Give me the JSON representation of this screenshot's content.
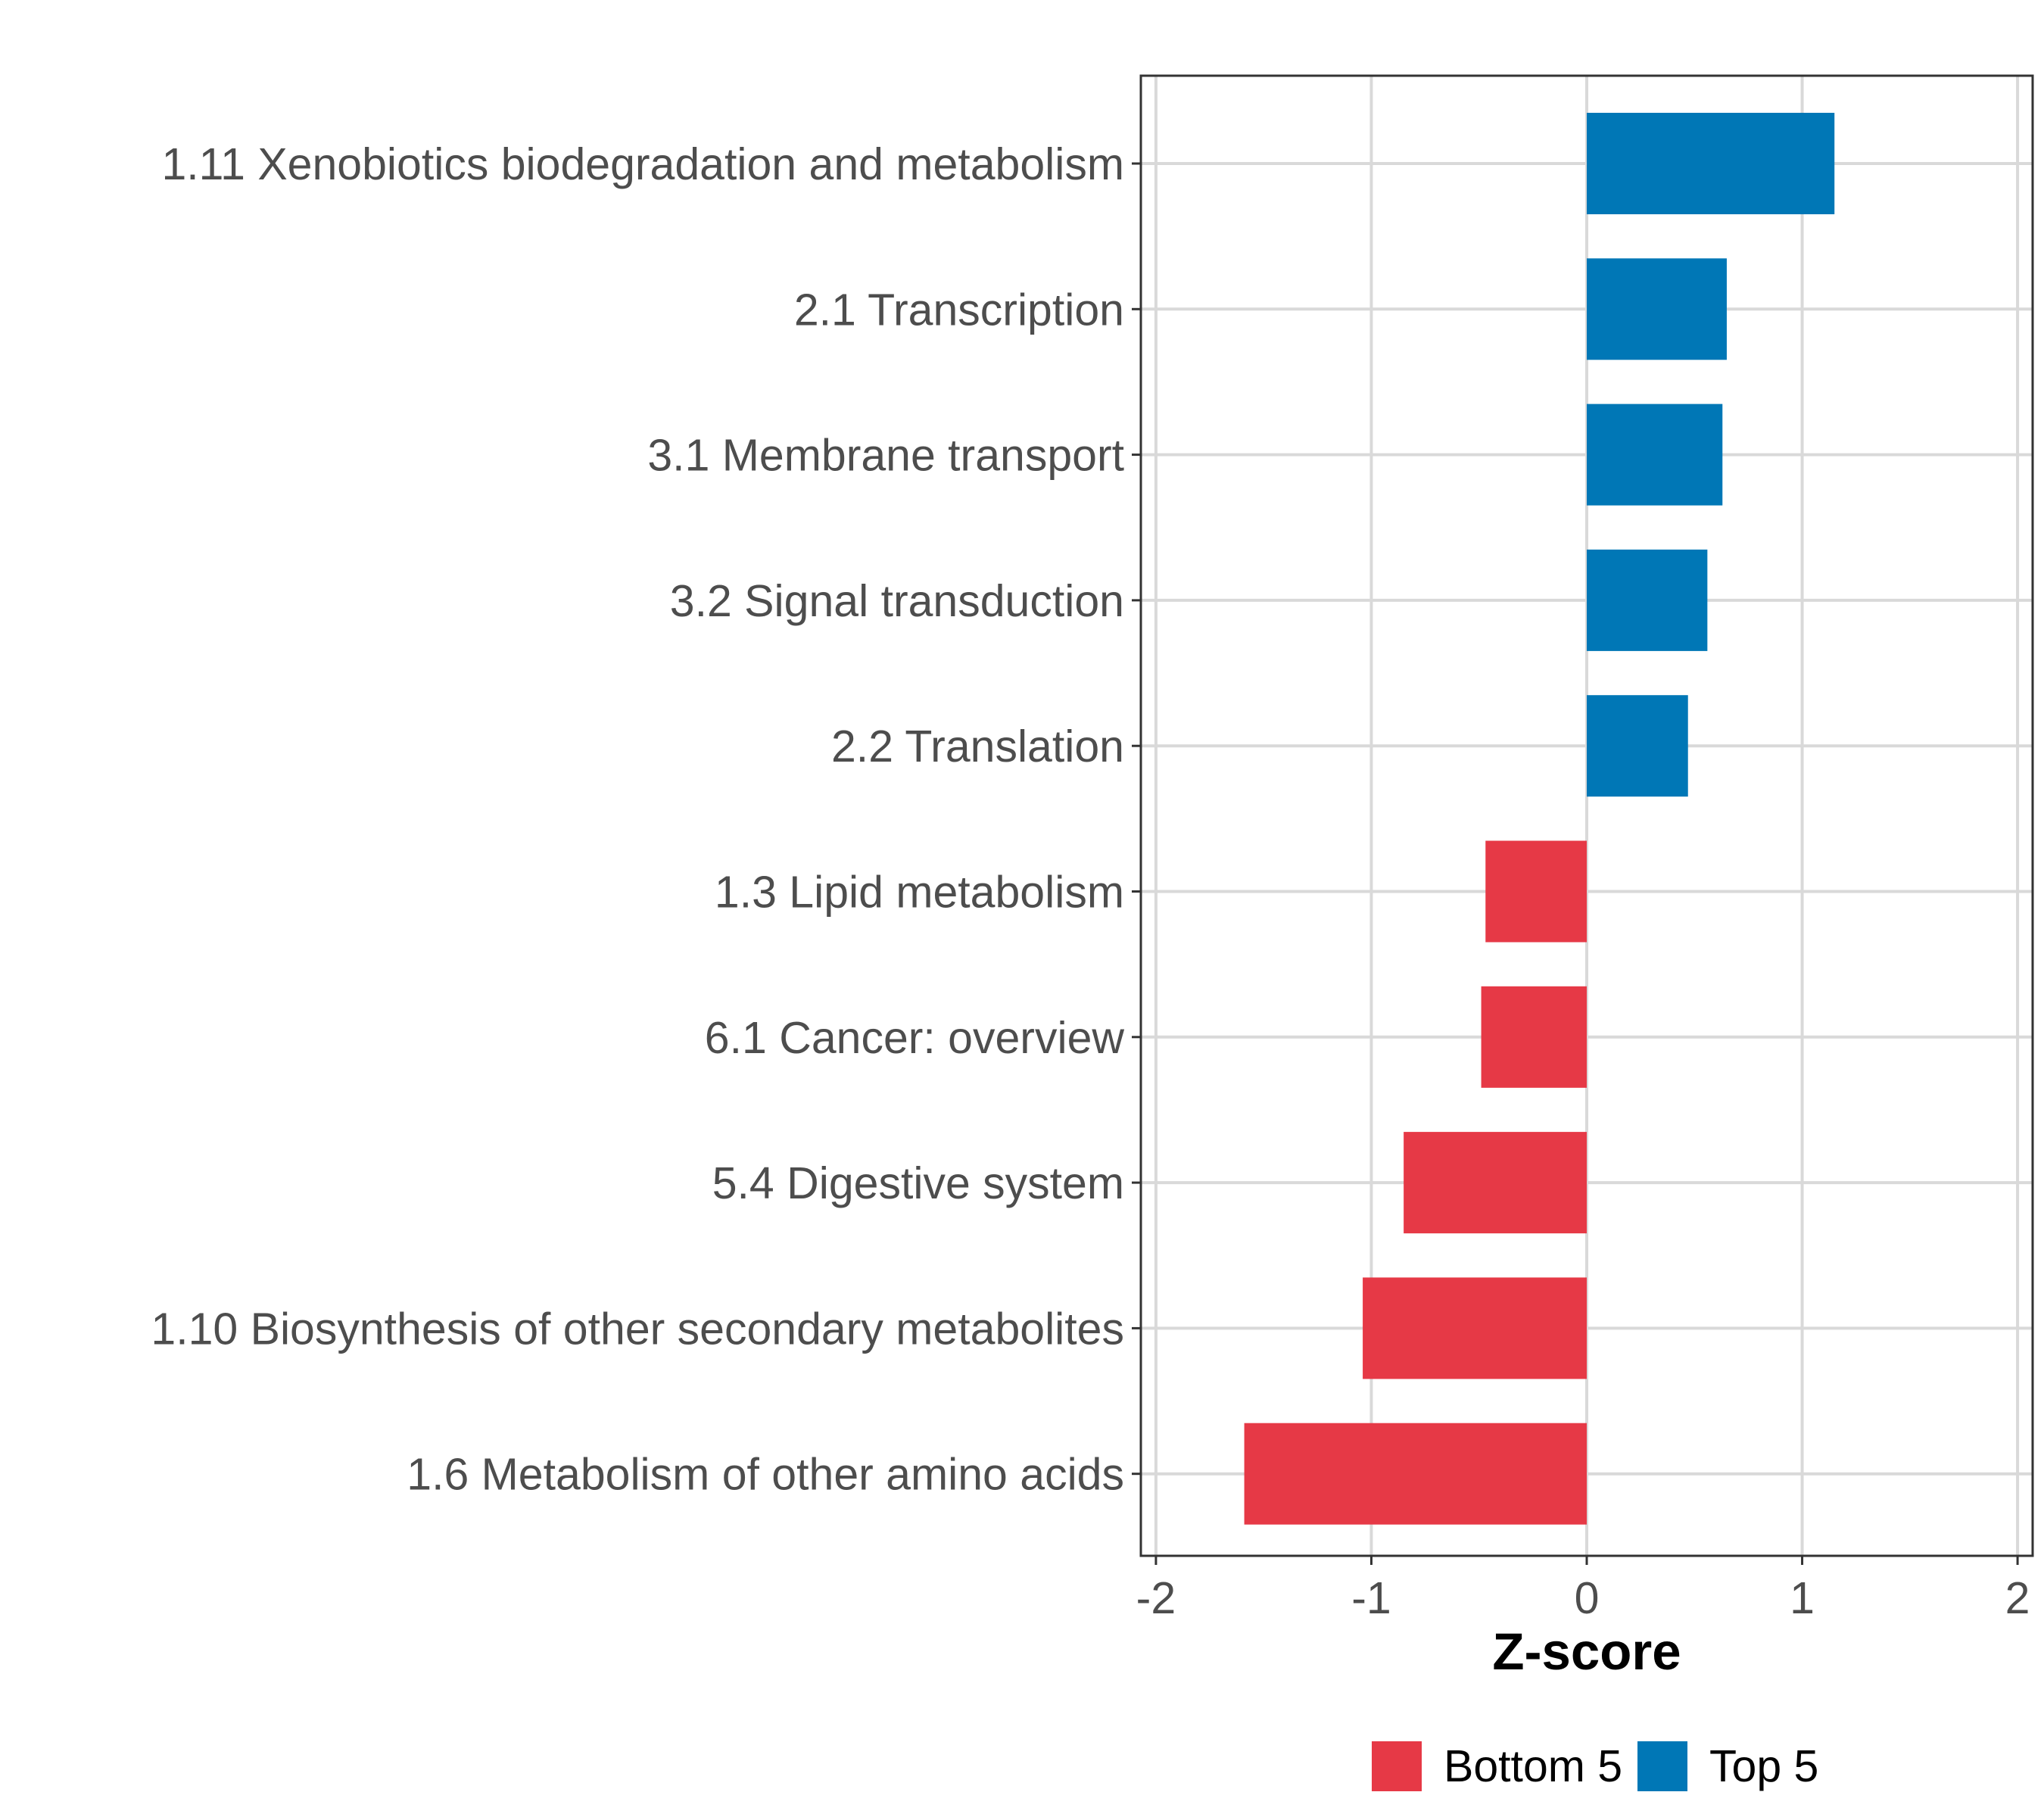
{
  "chart_data": {
    "type": "bar",
    "orientation": "horizontal",
    "title": "",
    "xlabel": "Z-score",
    "ylabel": "",
    "xlim": [
      -2,
      2
    ],
    "xticks": [
      -2,
      -1,
      0,
      1,
      2
    ],
    "xtick_labels": [
      "-2",
      "-1",
      "0",
      "1",
      "2"
    ],
    "grid": true,
    "legend_position": "bottom",
    "categories": [
      "1.11 Xenobiotics biodegradation and metabolism",
      "2.1 Transcription",
      "3.1 Membrane transport",
      "3.2 Signal transduction",
      "2.2 Translation",
      "1.3 Lipid metabolism",
      "6.1 Cancer: overview",
      "5.4 Digestive system",
      "1.10 Biosynthesis of other secondary metabolites",
      "1.6 Metabolism of other amino acids"
    ],
    "values": [
      1.15,
      0.65,
      0.63,
      0.56,
      0.47,
      -0.47,
      -0.49,
      -0.85,
      -1.04,
      -1.59
    ],
    "groups": [
      "Top 5",
      "Top 5",
      "Top 5",
      "Top 5",
      "Top 5",
      "Bottom 5",
      "Bottom 5",
      "Bottom 5",
      "Bottom 5",
      "Bottom 5"
    ],
    "legend": [
      {
        "name": "Bottom 5",
        "color": "#e63946"
      },
      {
        "name": "Top 5",
        "color": "#0077b6"
      }
    ]
  }
}
